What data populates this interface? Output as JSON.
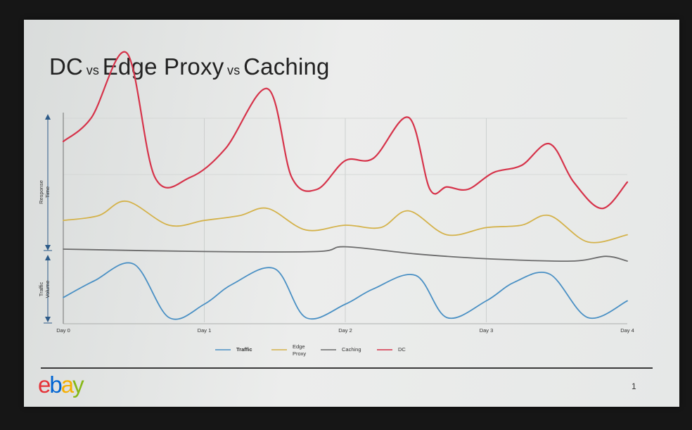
{
  "slide": {
    "title_parts": [
      "DC",
      "vs",
      "Edge Proxy",
      "vs",
      "Caching"
    ],
    "logo_letters": [
      "e",
      "b",
      "a",
      "y"
    ],
    "logo_colors": [
      "#e53238",
      "#0064d2",
      "#f5af02",
      "#86b817"
    ],
    "page_number": "1"
  },
  "chart_data": {
    "type": "line",
    "categories": [
      "Day 0",
      "Day 1",
      "Day 2",
      "Day 3",
      "Day 4"
    ],
    "x": [
      0,
      0.5,
      1,
      1.5,
      2,
      2.5,
      3,
      3.5,
      4
    ],
    "panels": [
      {
        "label_lines": [
          "Response",
          "Time"
        ],
        "series": [
          "Edge Proxy",
          "Caching",
          "DC"
        ]
      },
      {
        "label_lines": [
          "Traffic",
          "Volume"
        ],
        "series": [
          "Traffic"
        ]
      }
    ],
    "series": [
      {
        "name": "Traffic",
        "color": "#4a90c4",
        "points": [
          [
            0,
            0.35
          ],
          [
            0.22,
            0.6
          ],
          [
            0.5,
            0.85
          ],
          [
            0.75,
            0.05
          ],
          [
            1.0,
            0.25
          ],
          [
            1.2,
            0.55
          ],
          [
            1.5,
            0.78
          ],
          [
            1.72,
            0.05
          ],
          [
            2.0,
            0.25
          ],
          [
            2.2,
            0.48
          ],
          [
            2.5,
            0.68
          ],
          [
            2.72,
            0.05
          ],
          [
            3.0,
            0.3
          ],
          [
            3.2,
            0.58
          ],
          [
            3.45,
            0.7
          ],
          [
            3.72,
            0.05
          ],
          [
            4.0,
            0.3
          ]
        ]
      },
      {
        "name": "Edge Proxy",
        "color": "#d4b24a",
        "points": [
          [
            0,
            0.12
          ],
          [
            0.25,
            0.14
          ],
          [
            0.45,
            0.2
          ],
          [
            0.75,
            0.1
          ],
          [
            1.0,
            0.12
          ],
          [
            1.25,
            0.14
          ],
          [
            1.45,
            0.17
          ],
          [
            1.72,
            0.08
          ],
          [
            2.0,
            0.1
          ],
          [
            2.25,
            0.09
          ],
          [
            2.45,
            0.16
          ],
          [
            2.72,
            0.06
          ],
          [
            3.0,
            0.09
          ],
          [
            3.25,
            0.1
          ],
          [
            3.45,
            0.14
          ],
          [
            3.72,
            0.03
          ],
          [
            4.0,
            0.06
          ]
        ]
      },
      {
        "name": "Caching",
        "color": "#6b6b6b",
        "points": [
          [
            0,
            0.0
          ],
          [
            1.0,
            -0.01
          ],
          [
            1.8,
            -0.01
          ],
          [
            2.0,
            0.01
          ],
          [
            2.5,
            -0.02
          ],
          [
            3.0,
            -0.04
          ],
          [
            3.6,
            -0.05
          ],
          [
            3.85,
            -0.03
          ],
          [
            4.0,
            -0.05
          ]
        ]
      },
      {
        "name": "DC",
        "color": "#d6334a",
        "points": [
          [
            0,
            0.45
          ],
          [
            0.2,
            0.55
          ],
          [
            0.45,
            0.82
          ],
          [
            0.65,
            0.3
          ],
          [
            0.9,
            0.3
          ],
          [
            1.15,
            0.42
          ],
          [
            1.45,
            0.67
          ],
          [
            1.62,
            0.3
          ],
          [
            1.8,
            0.25
          ],
          [
            2.0,
            0.37
          ],
          [
            2.2,
            0.38
          ],
          [
            2.45,
            0.55
          ],
          [
            2.6,
            0.25
          ],
          [
            2.72,
            0.26
          ],
          [
            2.87,
            0.25
          ],
          [
            3.05,
            0.32
          ],
          [
            3.25,
            0.35
          ],
          [
            3.45,
            0.44
          ],
          [
            3.62,
            0.28
          ],
          [
            3.82,
            0.17
          ],
          [
            4.0,
            0.28
          ]
        ]
      }
    ],
    "legend": [
      "Traffic",
      "Edge Proxy",
      "Caching",
      "DC"
    ],
    "legend_lines": [
      [
        "Traffic"
      ],
      [
        "Edge",
        "Proxy"
      ],
      [
        "Caching"
      ],
      [
        "DC"
      ]
    ],
    "legend_placement": "bottom",
    "grid": true,
    "y_ticks": false
  }
}
